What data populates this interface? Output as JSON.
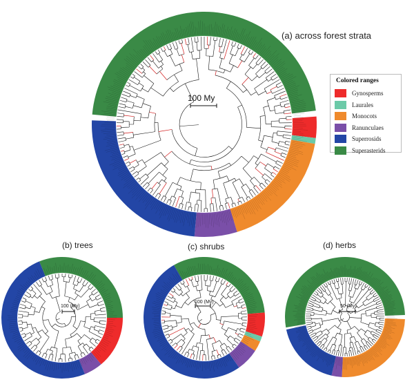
{
  "figure": {
    "panels": [
      {
        "id": "a",
        "title": "(a) across forest strata",
        "scale_label": "100 My"
      },
      {
        "id": "b",
        "title": "(b) trees",
        "scale_label": "100 (My)"
      },
      {
        "id": "c",
        "title": "(c) shrubs",
        "scale_label": "100 (My)"
      },
      {
        "id": "d",
        "title": "(d) herbs",
        "scale_label": "50 (My)"
      }
    ],
    "legend": {
      "title": "Colored ranges",
      "items": [
        {
          "label": "Gynosperms",
          "color": "#ee2b2b"
        },
        {
          "label": "Laurales",
          "color": "#6ccaa8"
        },
        {
          "label": "Monocots",
          "color": "#ef8a2c"
        },
        {
          "label": "Ranunculaes",
          "color": "#7a4fa8"
        },
        {
          "label": "Superrosids",
          "color": "#2346a6"
        },
        {
          "label": "Superasterids",
          "color": "#3a8a46"
        }
      ]
    },
    "clades": {
      "a": [
        {
          "clade": "Superasterids",
          "start": 275,
          "end": 83
        },
        {
          "clade": "Gynosperms",
          "start": 86,
          "end": 97
        },
        {
          "clade": "Laurales",
          "start": 97,
          "end": 100
        },
        {
          "clade": "Monocots",
          "start": 100,
          "end": 163
        },
        {
          "clade": "Ranunculaes",
          "start": 163,
          "end": 185
        },
        {
          "clade": "Superrosids",
          "start": 185,
          "end": 272
        }
      ],
      "b": [
        {
          "clade": "Superasterids",
          "start": 338,
          "end": 90
        },
        {
          "clade": "Gynosperms",
          "start": 90,
          "end": 140
        },
        {
          "clade": "Ranunculaes",
          "start": 140,
          "end": 158
        },
        {
          "clade": "Superrosids",
          "start": 158,
          "end": 338
        }
      ],
      "c": [
        {
          "clade": "Superasterids",
          "start": 330,
          "end": 85
        },
        {
          "clade": "Gynosperms",
          "start": 85,
          "end": 108
        },
        {
          "clade": "Laurales",
          "start": 108,
          "end": 113
        },
        {
          "clade": "Monocots",
          "start": 113,
          "end": 123
        },
        {
          "clade": "Ranunculaes",
          "start": 123,
          "end": 145
        },
        {
          "clade": "Superrosids",
          "start": 145,
          "end": 330
        }
      ],
      "d": [
        {
          "clade": "Superasterids",
          "start": 260,
          "end": 88
        },
        {
          "clade": "Monocots",
          "start": 92,
          "end": 183
        },
        {
          "clade": "Ranunculaes",
          "start": 183,
          "end": 193
        },
        {
          "clade": "Superrosids",
          "start": 193,
          "end": 258
        }
      ]
    }
  }
}
